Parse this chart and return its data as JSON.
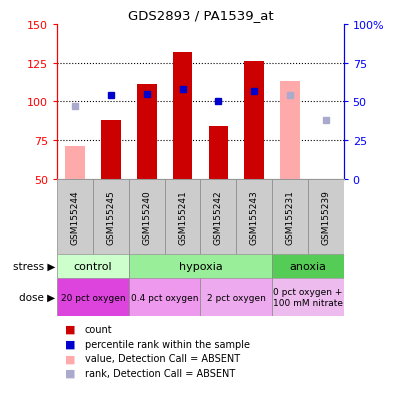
{
  "title": "GDS2893 / PA1539_at",
  "samples": [
    "GSM155244",
    "GSM155245",
    "GSM155240",
    "GSM155241",
    "GSM155242",
    "GSM155243",
    "GSM155231",
    "GSM155239"
  ],
  "ylim_left": [
    50,
    150
  ],
  "ylim_right": [
    0,
    100
  ],
  "yticks_left": [
    50,
    75,
    100,
    125,
    150
  ],
  "yticks_right": [
    0,
    25,
    50,
    75,
    100
  ],
  "ytick_labels_left": [
    "50",
    "75",
    "100",
    "125",
    "150"
  ],
  "ytick_labels_right": [
    "0",
    "25",
    "50",
    "75",
    "100%"
  ],
  "count_bars_present": [
    null,
    88,
    111,
    132,
    84,
    126,
    null,
    null
  ],
  "count_bars_absent": [
    71,
    null,
    null,
    null,
    null,
    null,
    113,
    null
  ],
  "rank_dots_present": [
    null,
    104,
    105,
    108,
    100,
    107,
    null,
    null
  ],
  "rank_dots_absent": [
    97,
    null,
    null,
    null,
    null,
    null,
    104,
    88
  ],
  "bar_width": 0.55,
  "bar_color_present": "#cc0000",
  "bar_color_absent": "#ffaaaa",
  "dot_color_present": "#0000cc",
  "dot_color_absent": "#aaaacc",
  "baseline": 50,
  "stress_groups": [
    {
      "label": "control",
      "start": 0,
      "end": 2,
      "color": "#ccffcc"
    },
    {
      "label": "hypoxia",
      "start": 2,
      "end": 6,
      "color": "#99ee99"
    },
    {
      "label": "anoxia",
      "start": 6,
      "end": 8,
      "color": "#55cc55"
    }
  ],
  "dose_groups": [
    {
      "label": "20 pct oxygen",
      "start": 0,
      "end": 2,
      "color": "#dd44dd"
    },
    {
      "label": "0.4 pct oxygen",
      "start": 2,
      "end": 4,
      "color": "#ee99ee"
    },
    {
      "label": "2 pct oxygen",
      "start": 4,
      "end": 6,
      "color": "#eeaaee"
    },
    {
      "label": "0 pct oxygen +\n100 mM nitrate",
      "start": 6,
      "end": 8,
      "color": "#eebbee"
    }
  ],
  "legend_items": [
    {
      "color": "#cc0000",
      "label": "count"
    },
    {
      "color": "#0000cc",
      "label": "percentile rank within the sample"
    },
    {
      "color": "#ffaaaa",
      "label": "value, Detection Call = ABSENT"
    },
    {
      "color": "#aaaacc",
      "label": "rank, Detection Call = ABSENT"
    }
  ],
  "sample_bg_color": "#cccccc",
  "stress_label": "stress",
  "dose_label": "dose"
}
